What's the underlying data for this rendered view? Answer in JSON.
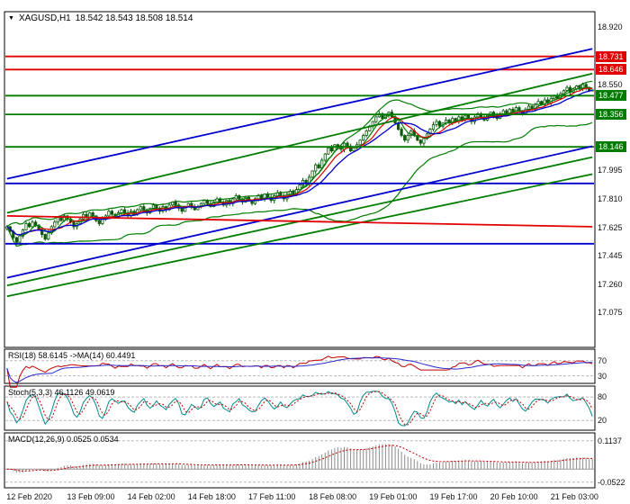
{
  "legend": {
    "dropdown_icon": "▼",
    "symbol": "XAGUSD,H1",
    "ohlc": "18.542 18.543 18.508 18.514"
  },
  "colors": {
    "red": "#e00000",
    "green": "#007d00",
    "blue": "#0000cc",
    "candle": "#0a5a0a",
    "bull_fill": "#ffffff",
    "hist": "#8c8c8c",
    "rsi_main": "#c00000",
    "rsi_ma": "#2929cc",
    "stoch_main": "#008b8b",
    "stoch_signal": "#c00000",
    "macd_signal": "#c00000",
    "level_dash": "#b8b8b8",
    "axis_text": "#111111"
  },
  "chart_data": {
    "type": "candlestick",
    "title": "XAGUSD,H1",
    "timeframe": "H1",
    "ylim": [
      16.85,
      19.02
    ],
    "y_ticks": [
      18.92,
      18.55,
      17.995,
      17.81,
      17.625,
      17.445,
      17.26,
      17.075
    ],
    "levels": [
      {
        "value": 18.731,
        "color": "red",
        "labeled": true
      },
      {
        "value": 18.646,
        "color": "red",
        "labeled": true
      },
      {
        "value": 18.477,
        "color": "green",
        "labeled": true
      },
      {
        "value": 18.356,
        "color": "green",
        "labeled": true
      },
      {
        "value": 18.146,
        "color": "green",
        "labeled": true
      },
      {
        "value": 17.91,
        "color": "blue",
        "labeled": false
      },
      {
        "value": 17.52,
        "color": "blue",
        "labeled": false
      }
    ],
    "trend_lines": [
      {
        "from": [
          0,
          17.94
        ],
        "to": [
          184,
          18.78
        ],
        "color": "blue"
      },
      {
        "from": [
          0,
          17.3
        ],
        "to": [
          184,
          18.15
        ],
        "color": "blue"
      },
      {
        "from": [
          0,
          17.72
        ],
        "to": [
          184,
          18.62
        ],
        "color": "green"
      },
      {
        "from": [
          0,
          17.25
        ],
        "to": [
          184,
          18.08
        ],
        "color": "green"
      },
      {
        "from": [
          0,
          17.18
        ],
        "to": [
          184,
          17.97
        ],
        "color": "green"
      },
      {
        "from": [
          0,
          17.7
        ],
        "to": [
          184,
          17.63
        ],
        "color": "red"
      }
    ],
    "x_labels": [
      {
        "index": 1,
        "label": "12 Feb 2020"
      },
      {
        "index": 20,
        "label": "13 Feb 09:00"
      },
      {
        "index": 39,
        "label": "14 Feb 02:00"
      },
      {
        "index": 58,
        "label": "14 Feb 18:00"
      },
      {
        "index": 77,
        "label": "17 Feb 11:00"
      },
      {
        "index": 96,
        "label": "18 Feb 08:00"
      },
      {
        "index": 115,
        "label": "19 Feb 01:00"
      },
      {
        "index": 134,
        "label": "19 Feb 17:00"
      },
      {
        "index": 153,
        "label": "20 Feb 10:00"
      },
      {
        "index": 172,
        "label": "21 Feb 03:00"
      }
    ],
    "closes": [
      17.63,
      17.6,
      17.56,
      17.53,
      17.57,
      17.61,
      17.65,
      17.63,
      17.66,
      17.64,
      17.61,
      17.58,
      17.55,
      17.59,
      17.63,
      17.66,
      17.69,
      17.67,
      17.7,
      17.68,
      17.66,
      17.63,
      17.65,
      17.68,
      17.71,
      17.69,
      17.72,
      17.7,
      17.67,
      17.65,
      17.68,
      17.7,
      17.73,
      17.71,
      17.69,
      17.72,
      17.74,
      17.72,
      17.7,
      17.73,
      17.71,
      17.74,
      17.76,
      17.74,
      17.72,
      17.75,
      17.77,
      17.75,
      17.73,
      17.76,
      17.74,
      17.77,
      17.79,
      17.77,
      17.75,
      17.73,
      17.76,
      17.78,
      17.76,
      17.74,
      17.76,
      17.78,
      17.8,
      17.78,
      17.76,
      17.79,
      17.81,
      17.79,
      17.77,
      17.8,
      17.78,
      17.81,
      17.83,
      17.81,
      17.79,
      17.82,
      17.8,
      17.78,
      17.81,
      17.83,
      17.81,
      17.84,
      17.82,
      17.8,
      17.83,
      17.85,
      17.83,
      17.81,
      17.84,
      17.86,
      17.84,
      17.87,
      17.9,
      17.93,
      17.91,
      17.95,
      17.99,
      18.03,
      18.01,
      18.06,
      18.1,
      18.14,
      18.12,
      18.16,
      18.15,
      18.13,
      18.17,
      18.15,
      18.12,
      18.14,
      18.16,
      18.19,
      18.22,
      18.25,
      18.28,
      18.31,
      18.34,
      18.36,
      18.33,
      18.35,
      18.37,
      18.34,
      18.3,
      18.26,
      18.22,
      18.19,
      18.22,
      18.25,
      18.22,
      18.19,
      18.17,
      18.2,
      18.23,
      18.26,
      18.29,
      18.31,
      18.28,
      18.3,
      18.32,
      18.3,
      18.33,
      18.31,
      18.34,
      18.32,
      18.35,
      18.33,
      18.31,
      18.34,
      18.36,
      18.34,
      18.32,
      18.35,
      18.37,
      18.35,
      18.33,
      18.36,
      18.38,
      18.36,
      18.39,
      18.37,
      18.4,
      18.38,
      18.36,
      18.39,
      18.41,
      18.39,
      18.42,
      18.44,
      18.42,
      18.45,
      18.43,
      18.46,
      18.48,
      18.46,
      18.49,
      18.51,
      18.53,
      18.5,
      18.52,
      18.54,
      18.52,
      18.55,
      18.53,
      18.51,
      18.514
    ],
    "current_bar": {
      "open": 18.542,
      "high": 18.543,
      "low": 18.508,
      "close": 18.514
    },
    "indicators": {
      "rsi": {
        "label": "RSI(18) 58.6145 ->MA(14) 60.4491",
        "period": 18,
        "ma_period": 14,
        "levels": [
          70,
          30
        ],
        "last": 58.6145,
        "ma_last": 60.4491
      },
      "stoch": {
        "label": "Stoch(5,3,3) 46.1126 49.0619",
        "k": 5,
        "slowing": 3,
        "d": 3,
        "levels": [
          80,
          20
        ],
        "last": 46.1126,
        "signal_last": 49.0619
      },
      "macd": {
        "label": "MACD(12,26,9) 0.0525 0.0534",
        "fast": 12,
        "slow": 26,
        "signal": 9,
        "scale_labels": [
          "0.1137",
          "-0.0522"
        ],
        "last": 0.0525,
        "signal_last": 0.0534
      }
    }
  }
}
